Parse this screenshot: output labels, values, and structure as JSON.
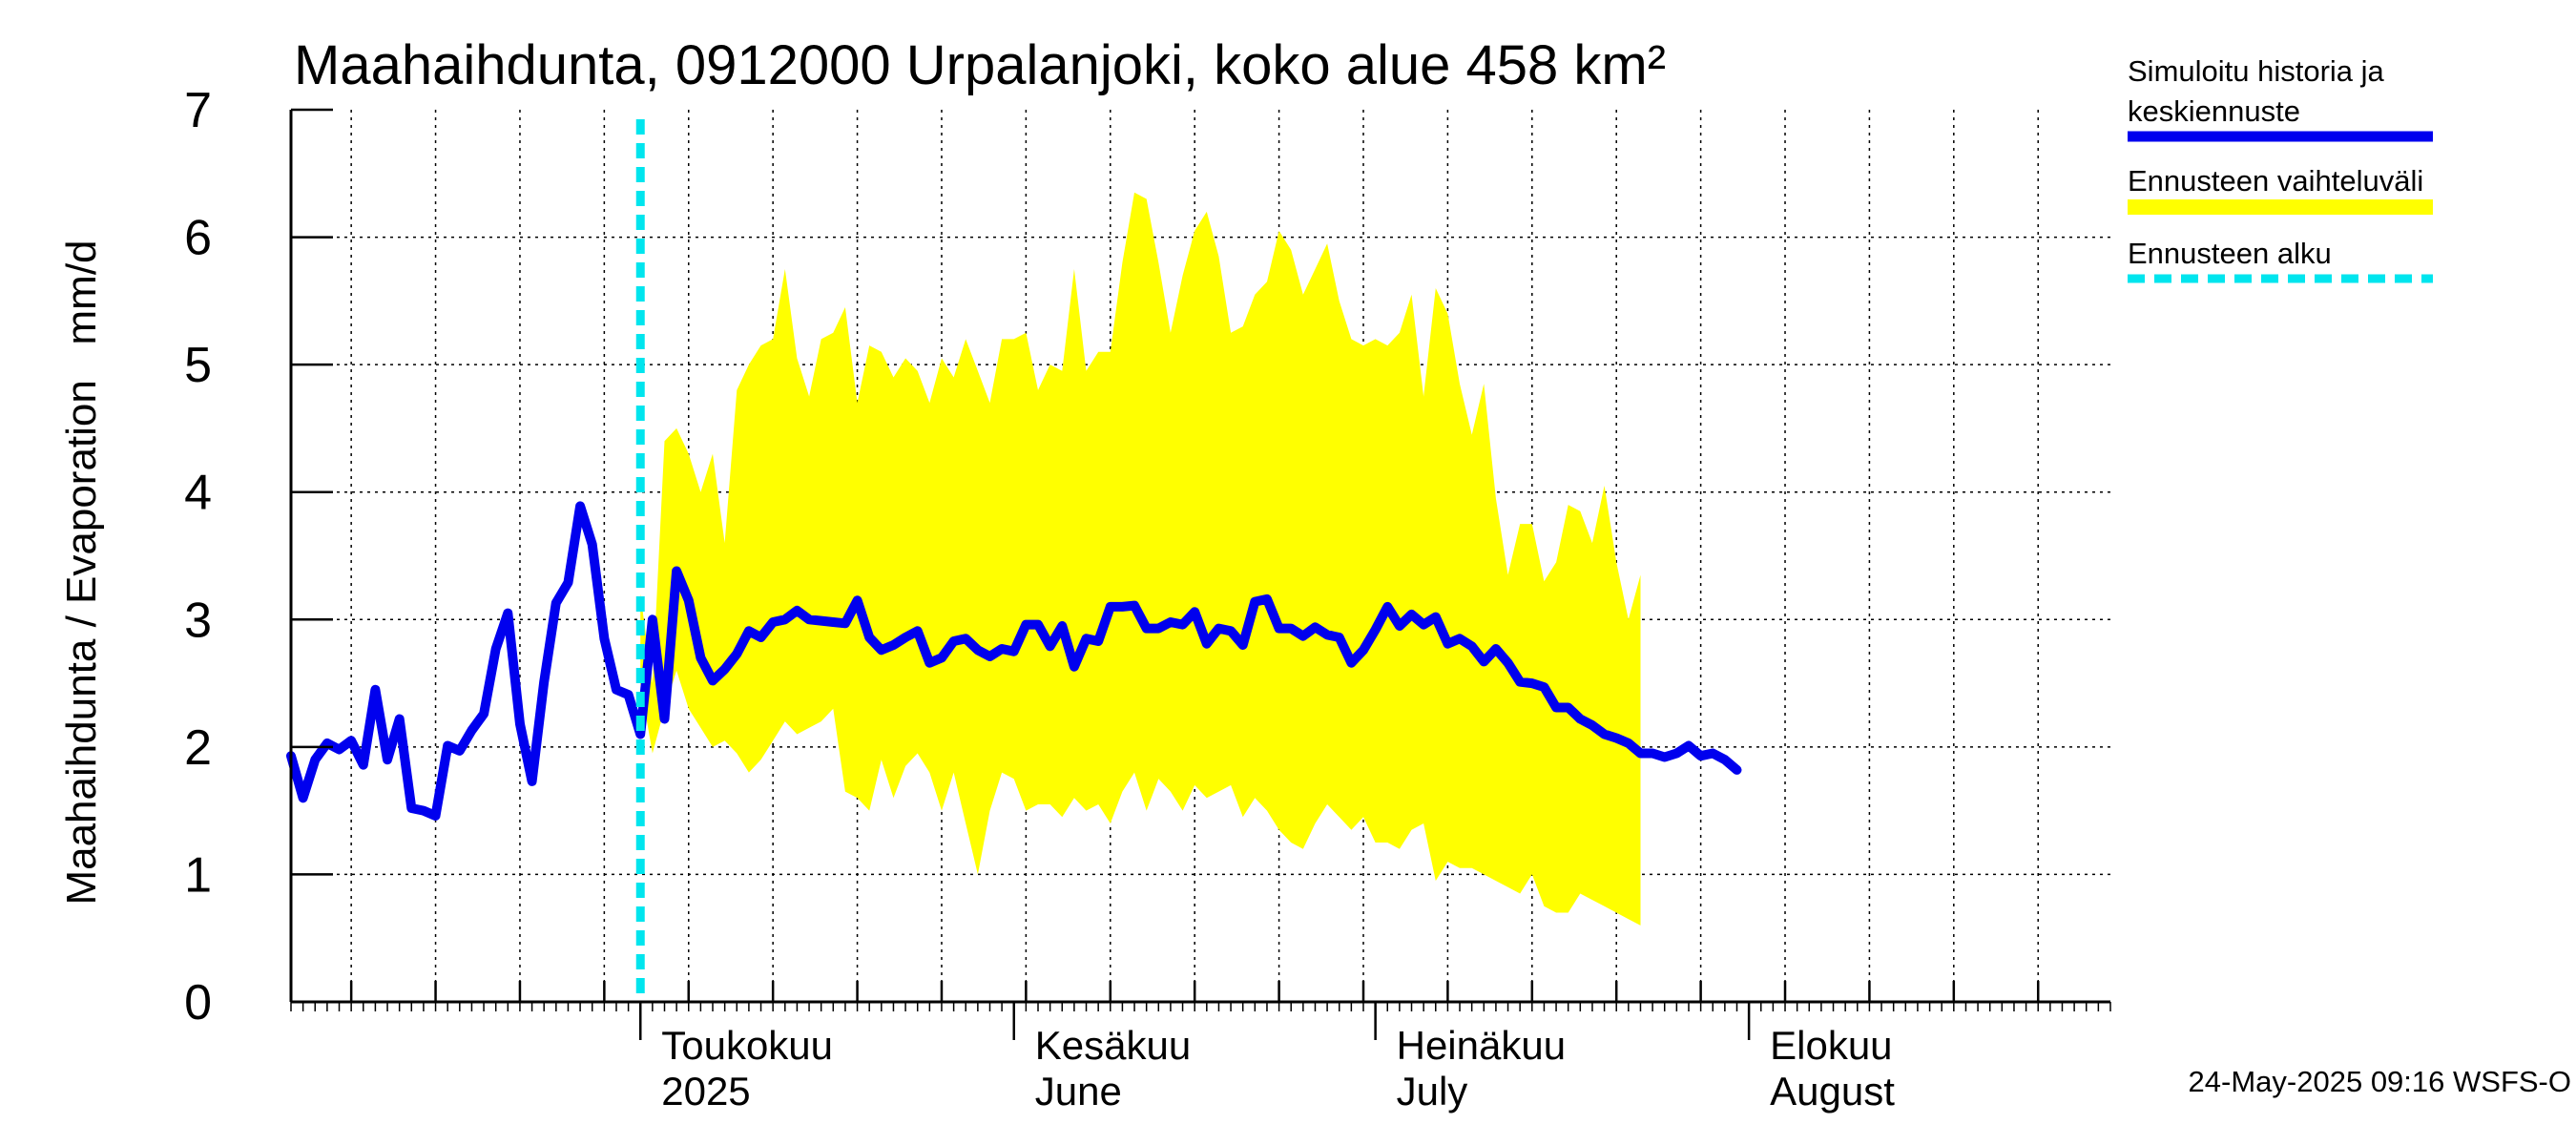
{
  "chart_data": {
    "type": "line",
    "title": "Maahaihdunta, 0912000 Urpalanjoki, koko alue 458 km²",
    "ylabel": "Maahaihdunta / Evaporation   mm/d",
    "ylim": [
      0,
      7
    ],
    "yticks": [
      "0",
      "1",
      "2",
      "3",
      "4",
      "5",
      "6",
      "7"
    ],
    "xlim": [
      "2025-04-02",
      "2025-08-31"
    ],
    "x_month_labels": [
      {
        "date": "2025-05-01",
        "line1": "Toukokuu",
        "line2": "2025"
      },
      {
        "date": "2025-06-01",
        "line1": "Kesäkuu",
        "line2": "June"
      },
      {
        "date": "2025-07-01",
        "line1": "Heinäkuu",
        "line2": "July"
      },
      {
        "date": "2025-08-01",
        "line1": "Elokuu",
        "line2": "August"
      }
    ],
    "grid": true,
    "legend_position": "right",
    "forecast_start": "2025-05-01",
    "series": [
      {
        "name": "Simuloitu historia ja keskiennuste",
        "color": "#0000ee",
        "start_date": "2025-04-02",
        "values": [
          1.93,
          1.6,
          1.9,
          2.03,
          1.98,
          2.05,
          1.86,
          2.45,
          1.9,
          2.22,
          1.52,
          1.5,
          1.46,
          2.01,
          1.97,
          2.13,
          2.26,
          2.77,
          3.05,
          2.18,
          1.73,
          2.51,
          3.13,
          3.29,
          3.89,
          3.59,
          2.85,
          2.45,
          2.41,
          2.1,
          3.0,
          2.22,
          3.38,
          3.15,
          2.7,
          2.52,
          2.61,
          2.73,
          2.91,
          2.86,
          2.98,
          3.0,
          3.07,
          3.0,
          2.99,
          2.98,
          2.97,
          3.15,
          2.86,
          2.76,
          2.8,
          2.86,
          2.91,
          2.66,
          2.7,
          2.83,
          2.85,
          2.76,
          2.71,
          2.77,
          2.75,
          2.96,
          2.96,
          2.79,
          2.95,
          2.63,
          2.85,
          2.83,
          3.1,
          3.1,
          3.11,
          2.93,
          2.93,
          2.98,
          2.96,
          3.06,
          2.81,
          2.93,
          2.91,
          2.8,
          3.14,
          3.16,
          2.93,
          2.93,
          2.87,
          2.94,
          2.88,
          2.86,
          2.66,
          2.76,
          2.92,
          3.1,
          2.95,
          3.04,
          2.96,
          3.02,
          2.81,
          2.85,
          2.79,
          2.67,
          2.77,
          2.66,
          2.51,
          2.5,
          2.47,
          2.31,
          2.31,
          2.22,
          2.17,
          2.1,
          2.07,
          2.03,
          1.95,
          1.95,
          1.92,
          1.95,
          2.01,
          1.93,
          1.95,
          1.9,
          1.82
        ]
      },
      {
        "name": "Ennusteen vaihteluväli",
        "color": "#ffff00",
        "start_date": "2025-05-01",
        "upper": [
          3.2,
          2.5,
          4.4,
          4.5,
          4.3,
          4.0,
          4.3,
          3.6,
          4.8,
          5.0,
          5.15,
          5.2,
          5.75,
          5.05,
          4.75,
          5.2,
          5.25,
          5.45,
          4.7,
          5.15,
          5.1,
          4.9,
          5.05,
          4.95,
          4.7,
          5.05,
          4.9,
          5.2,
          4.95,
          4.7,
          5.2,
          5.2,
          5.25,
          4.8,
          5.0,
          4.95,
          5.75,
          4.95,
          5.1,
          5.1,
          5.8,
          6.35,
          6.3,
          5.8,
          5.25,
          5.7,
          6.05,
          6.2,
          5.85,
          5.25,
          5.3,
          5.55,
          5.65,
          6.05,
          5.9,
          5.55,
          5.75,
          5.95,
          5.5,
          5.2,
          5.15,
          5.2,
          5.15,
          5.25,
          5.55,
          4.75,
          5.6,
          5.4,
          4.85,
          4.45,
          4.85,
          3.95,
          3.35,
          3.75,
          3.75,
          3.3,
          3.45,
          3.9,
          3.85,
          3.6,
          4.05,
          3.45,
          3.0,
          3.35
        ],
        "lower": [
          2.5,
          1.95,
          2.3,
          2.6,
          2.3,
          2.15,
          2.0,
          2.05,
          1.95,
          1.8,
          1.9,
          2.05,
          2.2,
          2.1,
          2.15,
          2.2,
          2.3,
          1.65,
          1.6,
          1.5,
          1.9,
          1.6,
          1.85,
          1.95,
          1.8,
          1.5,
          1.8,
          1.4,
          1.0,
          1.5,
          1.8,
          1.75,
          1.5,
          1.55,
          1.55,
          1.45,
          1.6,
          1.5,
          1.55,
          1.4,
          1.65,
          1.8,
          1.5,
          1.75,
          1.65,
          1.5,
          1.7,
          1.6,
          1.65,
          1.7,
          1.45,
          1.6,
          1.5,
          1.35,
          1.25,
          1.2,
          1.4,
          1.55,
          1.45,
          1.35,
          1.45,
          1.25,
          1.25,
          1.2,
          1.35,
          1.4,
          0.95,
          1.1,
          1.05,
          1.05,
          1.0,
          0.95,
          0.9,
          0.85,
          1.0,
          0.75,
          0.7,
          0.7,
          0.85,
          0.8,
          0.75,
          0.7,
          0.65,
          0.6
        ]
      },
      {
        "name": "Ennusteen alku",
        "color": "#00e5ee"
      }
    ]
  },
  "legend": {
    "simulated_line1": "Simuloitu historia ja",
    "simulated_line2": "keskiennuste",
    "range": "Ennusteen vaihteluväli",
    "forecast_start": "Ennusteen alku"
  },
  "footer": "24-May-2025 09:16 WSFS-O"
}
